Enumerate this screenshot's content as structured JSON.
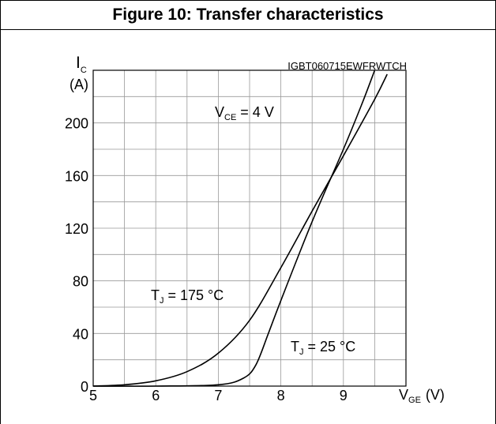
{
  "figure": {
    "title": "Figure 10: Transfer characteristics",
    "code": "IGBT060715EWFRWTCH"
  },
  "axes": {
    "y_symbol": "I",
    "y_symbol_sub": "C",
    "y_unit": "(A)",
    "x_symbol": "V",
    "x_symbol_sub": "GE",
    "x_unit": "(V)"
  },
  "annotations": {
    "vce": {
      "prefix": "V",
      "sub": "CE",
      "rest": " = 4 V"
    },
    "tj175": {
      "prefix": "T",
      "sub": "J",
      "rest": " = 175 °C"
    },
    "tj25": {
      "prefix": "T",
      "sub": "J",
      "rest": " = 25 °C"
    }
  },
  "chart_data": {
    "type": "line",
    "xlim": [
      5,
      10
    ],
    "ylim": [
      0,
      240
    ],
    "xticks": [
      5,
      6,
      7,
      8,
      9
    ],
    "yticks": [
      0,
      40,
      80,
      120,
      160,
      200
    ],
    "grid": true,
    "series": [
      {
        "name": "TJ = 175 °C",
        "x": [
          5.0,
          5.5,
          6.0,
          6.5,
          7.0,
          7.5,
          8.0,
          8.5,
          9.0,
          9.5,
          9.7
        ],
        "y": [
          0,
          1,
          4,
          11,
          25,
          50,
          90,
          133,
          175,
          218,
          237
        ]
      },
      {
        "name": "TJ = 25 °C",
        "x": [
          5.0,
          6.0,
          7.0,
          7.4,
          7.6,
          7.8,
          8.0,
          8.5,
          9.0,
          9.3,
          9.5
        ],
        "y": [
          0,
          0,
          1,
          6,
          16,
          40,
          65,
          125,
          180,
          215,
          240
        ]
      }
    ],
    "colors": {
      "line": "#000000",
      "grid": "#999999"
    }
  }
}
